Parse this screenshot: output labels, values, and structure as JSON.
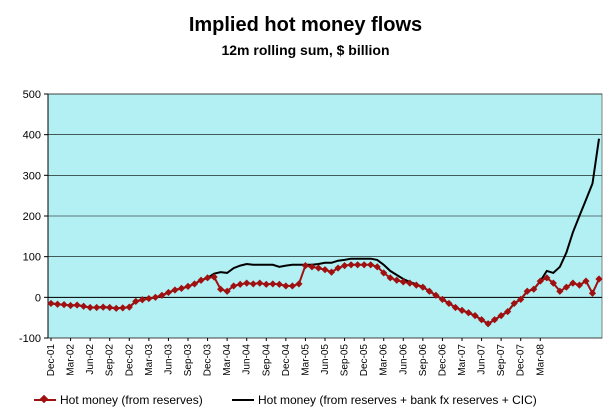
{
  "chart_data": {
    "type": "line",
    "title": "Implied hot money flows",
    "subtitle": "12m rolling sum, $ billion",
    "xlabel": "",
    "ylabel": "",
    "ylim": [
      -100,
      500
    ],
    "yticks": [
      -100,
      0,
      100,
      200,
      300,
      400,
      500
    ],
    "tick_labels": [
      "Dec-01",
      "Mar-02",
      "Jun-02",
      "Sep-02",
      "Dec-02",
      "Mar-03",
      "Jun-03",
      "Sep-03",
      "Dec-03",
      "Mar-04",
      "Jun-04",
      "Sep-04",
      "Dec-04",
      "Mar-05",
      "Jun-05",
      "Sep-05",
      "Dec-05",
      "Mar-06",
      "Jun-06",
      "Sep-06",
      "Dec-06",
      "Mar-07",
      "Jun-07",
      "Sep-07",
      "Dec-07",
      "Mar-08"
    ],
    "grid": true,
    "plot_background": "#b3f0f3",
    "legend_position": "bottom",
    "series": [
      {
        "name": "Hot money (from reserves)",
        "color": "#a01010",
        "marker": "diamond",
        "values": [
          -15,
          -17,
          -18,
          -20,
          -19,
          -22,
          -25,
          -25,
          -24,
          -25,
          -27,
          -26,
          -24,
          -10,
          -6,
          -3,
          0,
          5,
          12,
          18,
          22,
          27,
          33,
          42,
          48,
          50,
          20,
          15,
          28,
          32,
          35,
          33,
          35,
          32,
          33,
          32,
          28,
          28,
          33,
          78,
          75,
          72,
          68,
          62,
          72,
          78,
          80,
          80,
          80,
          80,
          75,
          60,
          48,
          42,
          38,
          35,
          30,
          25,
          15,
          5,
          -5,
          -15,
          -25,
          -32,
          -38,
          -45,
          -55,
          -65,
          -55,
          -45,
          -35,
          -15,
          -5,
          15,
          20,
          40,
          48,
          35,
          15,
          25,
          35,
          30,
          40,
          10,
          45
        ]
      },
      {
        "name": "Hot money (from reserves + bank fx reserves + CIC)",
        "color": "#000000",
        "marker": "none",
        "values": [
          -15,
          -17,
          -18,
          -20,
          -19,
          -22,
          -25,
          -25,
          -24,
          -25,
          -27,
          -26,
          -24,
          -10,
          -6,
          -3,
          0,
          5,
          12,
          18,
          22,
          27,
          33,
          42,
          48,
          58,
          62,
          60,
          72,
          78,
          82,
          80,
          80,
          80,
          80,
          75,
          78,
          80,
          80,
          80,
          80,
          82,
          85,
          85,
          90,
          92,
          95,
          95,
          95,
          95,
          92,
          80,
          65,
          55,
          45,
          38,
          32,
          25,
          15,
          5,
          -5,
          -15,
          -25,
          -32,
          -38,
          -45,
          -55,
          -65,
          -55,
          -45,
          -35,
          -15,
          -5,
          15,
          20,
          40,
          65,
          60,
          75,
          110,
          160,
          200,
          240,
          280,
          390
        ]
      }
    ]
  }
}
